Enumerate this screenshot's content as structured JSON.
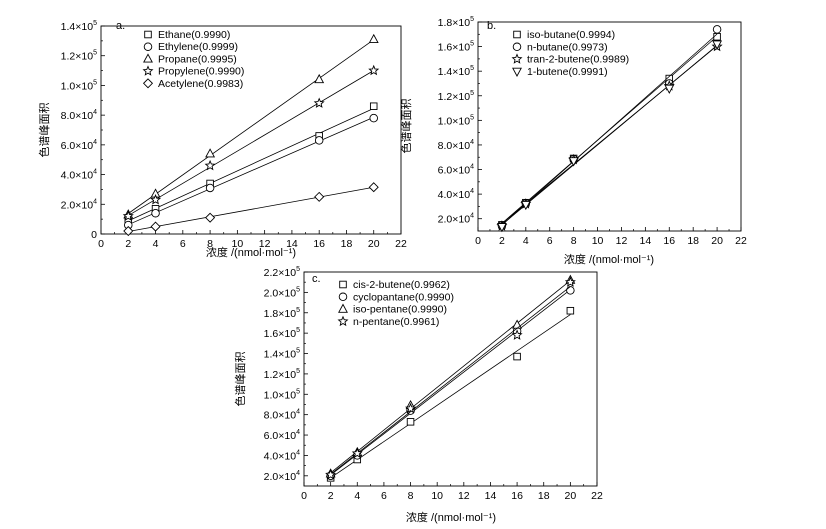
{
  "chart_data": [
    {
      "id": "a",
      "type": "scatter",
      "panel_label": "a.",
      "xlabel": "浓度 /(nmol·mol⁻¹)",
      "ylabel": "色谱峰面积",
      "xlim": [
        0,
        22
      ],
      "ylim": [
        0,
        140000
      ],
      "x_ticks": [
        0,
        2,
        4,
        6,
        8,
        10,
        12,
        14,
        16,
        18,
        20,
        22
      ],
      "y_ticks": [
        {
          "value": 0,
          "mant": "0",
          "exp": ""
        },
        {
          "value": 20000,
          "mant": "2.0×10",
          "exp": "4"
        },
        {
          "value": 40000,
          "mant": "4.0×10",
          "exp": "4"
        },
        {
          "value": 60000,
          "mant": "6.0×10",
          "exp": "4"
        },
        {
          "value": 80000,
          "mant": "8.0×10",
          "exp": "4"
        },
        {
          "value": 100000,
          "mant": "1.0×10",
          "exp": "5"
        },
        {
          "value": 120000,
          "mant": "1.2×10",
          "exp": "5"
        },
        {
          "value": 140000,
          "mant": "1.4×10",
          "exp": "5"
        }
      ],
      "legend_position": "top-left",
      "x": [
        2,
        4,
        8,
        16,
        20
      ],
      "series": [
        {
          "name": "Ethane(0.9990)",
          "marker": "square",
          "values": [
            9500,
            17000,
            34000,
            66000,
            86000
          ]
        },
        {
          "name": "Ethylene(0.9999)",
          "marker": "circle",
          "values": [
            6000,
            14000,
            31000,
            63000,
            78000
          ]
        },
        {
          "name": "Propane(0.9995)",
          "marker": "triangle-up",
          "values": [
            13000,
            27000,
            54000,
            104000,
            131000
          ]
        },
        {
          "name": "Propylene(0.9990)",
          "marker": "star",
          "values": [
            12000,
            23000,
            46000,
            88000,
            110000
          ]
        },
        {
          "name": "Acetylene(0.9983)",
          "marker": "diamond",
          "values": [
            2000,
            5000,
            11000,
            25000,
            31500
          ]
        }
      ]
    },
    {
      "id": "b",
      "type": "scatter",
      "panel_label": "b.",
      "xlabel": "浓度 /(nmol·mol⁻¹)",
      "ylabel": "色谱峰面积",
      "xlim": [
        0,
        22
      ],
      "ylim": [
        10000,
        180000
      ],
      "x_ticks": [
        0,
        2,
        4,
        6,
        8,
        10,
        12,
        14,
        16,
        18,
        20,
        22
      ],
      "y_ticks": [
        {
          "value": 20000,
          "mant": "2.0×10",
          "exp": "4"
        },
        {
          "value": 40000,
          "mant": "4.0×10",
          "exp": "4"
        },
        {
          "value": 60000,
          "mant": "6.0×10",
          "exp": "4"
        },
        {
          "value": 80000,
          "mant": "8.0×10",
          "exp": "4"
        },
        {
          "value": 100000,
          "mant": "1.0×10",
          "exp": "5"
        },
        {
          "value": 120000,
          "mant": "1.2×10",
          "exp": "5"
        },
        {
          "value": 140000,
          "mant": "1.4×10",
          "exp": "5"
        },
        {
          "value": 160000,
          "mant": "1.6×10",
          "exp": "5"
        },
        {
          "value": 180000,
          "mant": "1.8×10",
          "exp": "5"
        }
      ],
      "legend_position": "top-left",
      "x": [
        2,
        4,
        8,
        16,
        20
      ],
      "series": [
        {
          "name": "iso-butane(0.9994)",
          "marker": "square",
          "values": [
            15000,
            33000,
            69000,
            134000,
            168000
          ]
        },
        {
          "name": "n-butane(0.9973)",
          "marker": "circle",
          "values": [
            14500,
            32500,
            68500,
            130000,
            174000
          ]
        },
        {
          "name": "tran-2-butene(0.9989)",
          "marker": "star",
          "values": [
            14000,
            32000,
            68000,
            128000,
            160000
          ]
        },
        {
          "name": "1-butene(0.9991)",
          "marker": "triangle-down",
          "values": [
            13500,
            31500,
            67000,
            126000,
            162000
          ]
        }
      ]
    },
    {
      "id": "c",
      "type": "scatter",
      "panel_label": "c.",
      "xlabel": "浓度 /(nmol·mol⁻¹)",
      "ylabel": "色谱峰面积",
      "xlim": [
        0,
        22
      ],
      "ylim": [
        10000,
        220000
      ],
      "x_ticks": [
        0,
        2,
        4,
        6,
        8,
        10,
        12,
        14,
        16,
        18,
        20,
        22
      ],
      "y_ticks": [
        {
          "value": 20000,
          "mant": "2.0×10",
          "exp": "4"
        },
        {
          "value": 40000,
          "mant": "4.0×10",
          "exp": "4"
        },
        {
          "value": 60000,
          "mant": "6.0×10",
          "exp": "4"
        },
        {
          "value": 80000,
          "mant": "8.0×10",
          "exp": "4"
        },
        {
          "value": 100000,
          "mant": "1.0×10",
          "exp": "5"
        },
        {
          "value": 120000,
          "mant": "1.2×10",
          "exp": "5"
        },
        {
          "value": 140000,
          "mant": "1.4×10",
          "exp": "5"
        },
        {
          "value": 160000,
          "mant": "1.6×10",
          "exp": "5"
        },
        {
          "value": 180000,
          "mant": "1.8×10",
          "exp": "5"
        },
        {
          "value": 200000,
          "mant": "2.0×10",
          "exp": "5"
        },
        {
          "value": 220000,
          "mant": "2.2×10",
          "exp": "5"
        }
      ],
      "legend_position": "top-left",
      "x": [
        2,
        4,
        8,
        16,
        20
      ],
      "series": [
        {
          "name": "cis-2-butene(0.9962)",
          "marker": "square",
          "values": [
            18000,
            36000,
            73000,
            137000,
            182000
          ]
        },
        {
          "name": "cyclopantane(0.9990)",
          "marker": "circle",
          "values": [
            20000,
            40000,
            84000,
            162000,
            202000
          ]
        },
        {
          "name": "iso-pentane(0.9990)",
          "marker": "triangle-up",
          "values": [
            22000,
            43000,
            89000,
            168000,
            212000
          ]
        },
        {
          "name": "n-pentane(0.9961)",
          "marker": "star",
          "values": [
            21000,
            42000,
            86000,
            158000,
            210000
          ]
        }
      ]
    }
  ]
}
